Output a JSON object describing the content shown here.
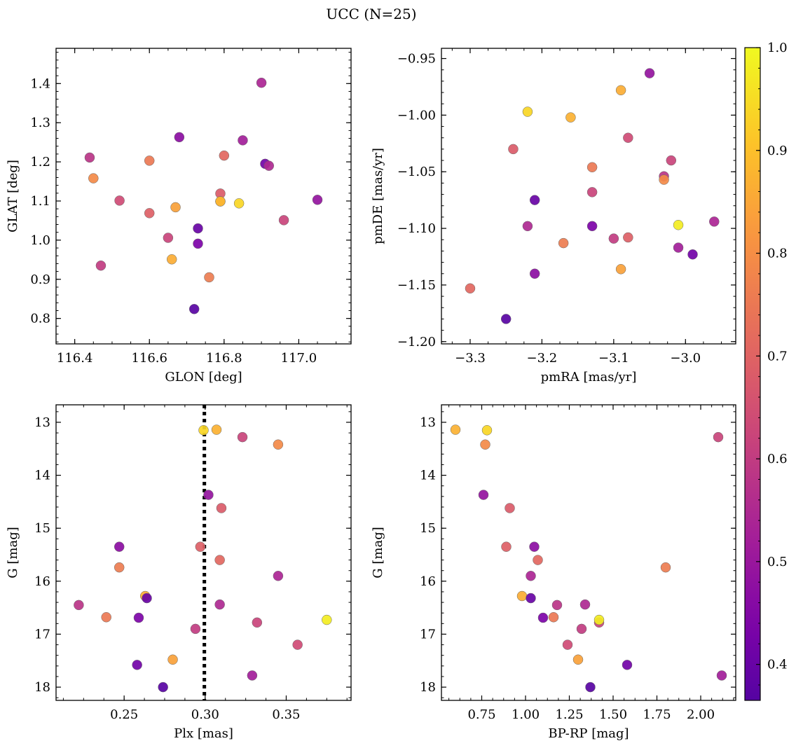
{
  "figure_title": "UCC (N=25)",
  "colorbar": {
    "ticks": [
      0.4,
      0.5,
      0.6,
      0.7,
      0.8,
      0.9,
      1.0
    ],
    "tick_labels": [
      "0.4",
      "0.5",
      "0.6",
      "0.7",
      "0.8",
      "0.9",
      "1.0"
    ],
    "range": [
      0.365,
      1.0
    ],
    "colormap": "plasma"
  },
  "stars": {
    "prob": [
      0.37,
      0.42,
      0.44,
      0.47,
      0.52,
      0.55,
      0.6,
      0.62,
      0.64,
      0.68,
      0.75,
      0.76,
      0.84,
      0.86,
      0.98,
      0.4,
      0.49,
      0.54,
      0.58,
      0.62,
      0.69,
      0.71,
      0.79,
      0.87,
      0.94
    ],
    "glon": [
      116.72,
      116.91,
      116.73,
      116.68,
      116.85,
      116.92,
      116.47,
      116.65,
      116.52,
      116.79,
      116.6,
      116.76,
      116.67,
      116.66,
      116.79,
      116.73,
      117.05,
      116.9,
      116.44,
      116.96,
      116.6,
      116.8,
      116.45,
      116.79,
      116.84
    ],
    "glat": [
      0.824,
      1.195,
      0.991,
      1.263,
      1.255,
      1.19,
      0.935,
      1.006,
      1.101,
      1.119,
      1.203,
      0.905,
      1.084,
      0.951,
      1.099,
      1.03,
      1.103,
      1.402,
      1.211,
      1.051,
      1.069,
      1.216,
      1.158,
      1.099,
      1.094
    ],
    "pmra": [
      -3.25,
      -2.99,
      -3.13,
      -3.21,
      -3.01,
      -3.22,
      -3.1,
      -3.02,
      -3.08,
      -3.24,
      -3.13,
      -3.17,
      -3.09,
      -3.09,
      -3.01,
      -3.21,
      -3.05,
      -2.96,
      -3.03,
      -3.13,
      -3.08,
      -3.3,
      -3.03,
      -3.16,
      -3.22
    ],
    "pmde": [
      -1.18,
      -1.123,
      -1.098,
      -1.14,
      -1.117,
      -1.098,
      -1.109,
      -1.04,
      -1.02,
      -1.03,
      -1.046,
      -1.113,
      -1.136,
      -0.978,
      -1.097,
      -1.075,
      -0.963,
      -1.094,
      -1.054,
      -1.068,
      -1.108,
      -1.153,
      -1.057,
      -1.002,
      -0.997
    ],
    "plx": [
      0.274,
      0.258,
      0.259,
      0.247,
      0.329,
      0.309,
      0.294,
      0.332,
      0.357,
      0.31,
      0.239,
      0.247,
      0.28,
      0.263,
      0.375,
      0.264,
      0.302,
      0.345,
      0.222,
      0.323,
      0.297,
      0.309,
      0.345,
      0.307,
      0.299
    ],
    "g": [
      18.0,
      17.58,
      16.69,
      15.35,
      17.78,
      16.44,
      16.9,
      16.78,
      17.2,
      14.62,
      16.68,
      15.74,
      17.48,
      16.28,
      16.73,
      16.32,
      14.37,
      15.9,
      16.45,
      13.28,
      15.35,
      15.6,
      13.42,
      13.14,
      13.15
    ],
    "bprp": [
      1.37,
      1.58,
      1.1,
      1.05,
      2.12,
      1.34,
      1.32,
      1.42,
      1.24,
      0.91,
      1.16,
      1.8,
      1.3,
      0.98,
      1.42,
      1.03,
      0.76,
      1.03,
      1.18,
      2.1,
      0.89,
      1.07,
      0.77,
      0.6,
      0.78
    ]
  },
  "chart_data": [
    {
      "type": "scatter",
      "xlabel": "GLON [deg]",
      "ylabel": "GLAT [deg]",
      "x_field": "glon",
      "y_field": "glat",
      "xlim": [
        116.35,
        117.14
      ],
      "ylim": [
        0.735,
        1.49
      ],
      "xticks": [
        116.4,
        116.6,
        116.8,
        117.0
      ],
      "xtick_labels": [
        "116.4",
        "116.6",
        "116.8",
        "117.0"
      ],
      "yticks": [
        0.8,
        0.9,
        1.0,
        1.1,
        1.2,
        1.3,
        1.4
      ],
      "ytick_labels": [
        "0.8",
        "0.9",
        "1.0",
        "1.1",
        "1.2",
        "1.3",
        "1.4"
      ],
      "y_inverted": false
    },
    {
      "type": "scatter",
      "xlabel": "pmRA [mas/yr]",
      "ylabel": "pmDE [mas/yr]",
      "x_field": "pmra",
      "y_field": "pmde",
      "xlim": [
        -3.34,
        -2.93
      ],
      "ylim": [
        -1.202,
        -0.941
      ],
      "xticks": [
        -3.3,
        -3.2,
        -3.1,
        -3.0
      ],
      "xtick_labels": [
        "−3.3",
        "−3.2",
        "−3.1",
        "−3.0"
      ],
      "yticks": [
        -1.2,
        -1.15,
        -1.1,
        -1.05,
        -1.0,
        -0.95
      ],
      "ytick_labels": [
        "−1.20",
        "−1.15",
        "−1.10",
        "−1.05",
        "−1.00",
        "−0.95"
      ],
      "y_inverted": false
    },
    {
      "type": "scatter",
      "xlabel": "Plx [mas]",
      "ylabel": "G [mag]",
      "x_field": "plx",
      "y_field": "g",
      "xlim": [
        0.208,
        0.39
      ],
      "ylim": [
        12.67,
        18.25
      ],
      "xticks": [
        0.25,
        0.3,
        0.35
      ],
      "xtick_labels": [
        "0.25",
        "0.30",
        "0.35"
      ],
      "yticks": [
        13,
        14,
        15,
        16,
        17,
        18
      ],
      "ytick_labels": [
        "13",
        "14",
        "15",
        "16",
        "17",
        "18"
      ],
      "y_inverted": true,
      "vline": 0.2995
    },
    {
      "type": "scatter",
      "xlabel": "BP-RP [mag]",
      "ylabel": "G [mag]",
      "x_field": "bprp",
      "y_field": "g",
      "xlim": [
        0.52,
        2.2
      ],
      "ylim": [
        12.67,
        18.25
      ],
      "xticks": [
        0.75,
        1.0,
        1.25,
        1.5,
        1.75,
        2.0
      ],
      "xtick_labels": [
        "0.75",
        "1.00",
        "1.25",
        "1.50",
        "1.75",
        "2.00"
      ],
      "yticks": [
        13,
        14,
        15,
        16,
        17,
        18
      ],
      "ytick_labels": [
        "13",
        "14",
        "15",
        "16",
        "17",
        "18"
      ],
      "y_inverted": true
    }
  ]
}
